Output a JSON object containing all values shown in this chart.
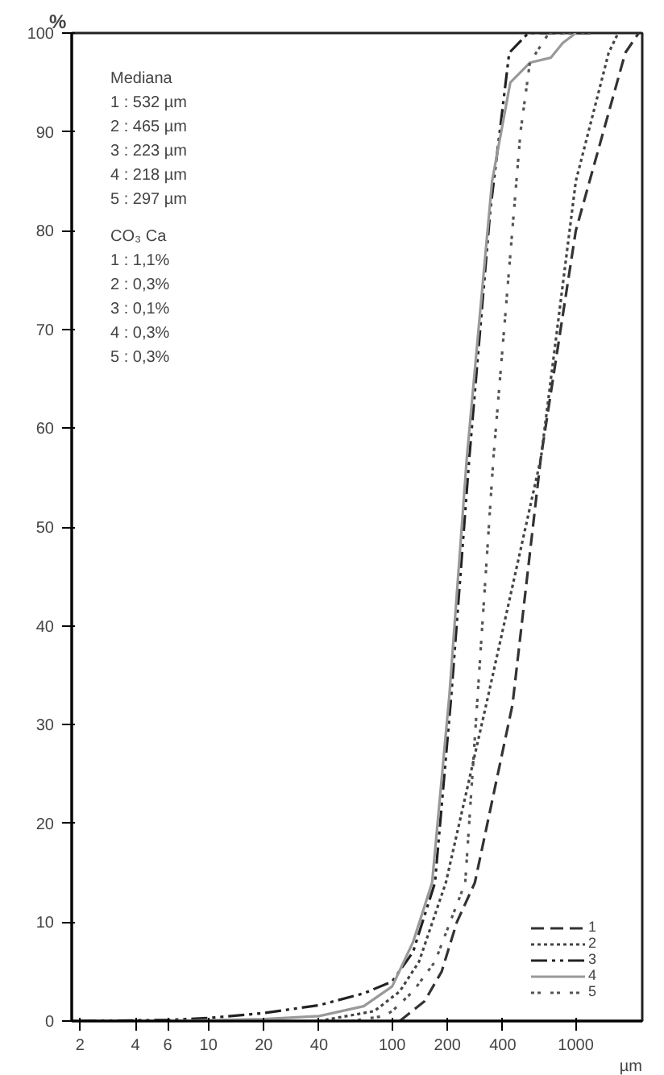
{
  "chart_data": {
    "type": "line",
    "ylabel": "%",
    "xlabel": "µm",
    "log": "x",
    "xlim": [
      1.8,
      2300
    ],
    "ylim": [
      0,
      100
    ],
    "xticks": [
      2,
      4,
      6,
      10,
      20,
      40,
      100,
      200,
      400,
      1000
    ],
    "yticks": [
      0,
      10,
      20,
      30,
      40,
      50,
      60,
      70,
      80,
      90,
      100
    ],
    "grid": false,
    "legend": "bottom right",
    "marker": "none",
    "annotations": [
      "Mediana",
      "1 : 532 µm",
      "2 : 465 µm",
      "3 : 223 µm",
      "4 : 218 µm",
      "5 : 297 µm",
      "CO₃ Ca",
      "1 : 1,1%",
      "2 : 0,3%",
      "3 : 0,1%",
      "4 : 0,3%",
      "5 : 0,3%"
    ],
    "series": [
      {
        "name": "1",
        "color": "#333333",
        "line_style": "dashed",
        "x": [
          110,
          150,
          186,
          225,
          282,
          452,
          645,
          1000,
          1860,
          2200
        ],
        "values": [
          0,
          2,
          5,
          10,
          14,
          32,
          57,
          80,
          98,
          100
        ]
      },
      {
        "name": "2",
        "color": "#444444",
        "line_style": "dotted",
        "x": [
          40,
          80,
          110,
          140,
          196,
          325,
          646,
          1000,
          1510,
          1700
        ],
        "values": [
          0,
          1,
          3,
          6,
          14,
          32,
          57,
          85,
          98,
          100
        ]
      },
      {
        "name": "3",
        "color": "#222222",
        "line_style": "dashdot",
        "x": [
          2,
          6,
          10,
          20,
          40,
          70,
          100,
          130,
          171,
          210,
          263,
          342,
          434,
          551,
          1200
        ],
        "values": [
          0,
          0.1,
          0.3,
          0.8,
          1.6,
          2.8,
          4,
          7,
          14,
          33,
          57,
          82,
          98,
          100,
          100
        ]
      },
      {
        "name": "4",
        "color": "#999999",
        "line_style": "solid",
        "x": [
          6,
          20,
          40,
          70,
          100,
          130,
          165,
          205,
          255,
          350,
          440,
          562,
          730,
          850,
          1000
        ],
        "values": [
          0,
          0.2,
          0.5,
          1.5,
          3.5,
          8,
          14,
          33,
          57,
          85,
          95,
          97,
          97.5,
          99,
          100
        ]
      },
      {
        "name": "5",
        "color": "#555555",
        "line_style": "dotdot",
        "x": [
          60,
          90,
          100,
          130,
          171,
          250,
          356,
          500,
          562,
          713,
          1200
        ],
        "values": [
          0,
          0.5,
          1,
          3,
          6,
          14,
          57,
          90,
          97,
          100,
          100
        ]
      }
    ]
  }
}
